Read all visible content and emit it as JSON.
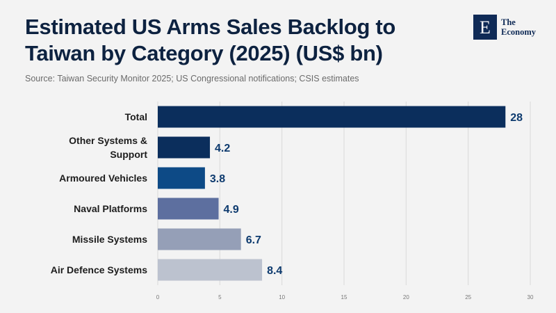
{
  "header": {
    "title": "Estimated US Arms Sales Backlog to Taiwan by Category (2025) (US$ bn)",
    "source": "Source: Taiwan Security Monitor 2025; US Congressional notifications; CSIS estimates"
  },
  "logo": {
    "mark": "E",
    "line1": "The",
    "line2": "Economy"
  },
  "chart_data": {
    "type": "bar",
    "orientation": "horizontal",
    "title": "Estimated US Arms Sales Backlog to Taiwan by Category (2025) (US$ bn)",
    "categories": [
      "Total",
      "Other Systems & Support",
      "Armoured Vehicles",
      "Naval Platforms",
      "Missile Systems",
      "Air Defence Systems"
    ],
    "category_lines": [
      [
        "Total"
      ],
      [
        "Other Systems &",
        "Support"
      ],
      [
        "Armoured Vehicles"
      ],
      [
        "Naval Platforms"
      ],
      [
        "Missile Systems"
      ],
      [
        "Air Defence Systems"
      ]
    ],
    "values": [
      28,
      4.2,
      3.8,
      4.9,
      6.7,
      8.4
    ],
    "value_labels": [
      "28",
      "4.2",
      "3.8",
      "4.9",
      "6.7",
      "8.4"
    ],
    "colors": [
      "#0b2e5c",
      "#0b2e5c",
      "#0d4a86",
      "#5d6f9f",
      "#959fb7",
      "#bcc2cf"
    ],
    "xlim": [
      0,
      30
    ],
    "xticks": [
      0,
      5,
      10,
      15,
      20,
      25,
      30
    ],
    "grid": true,
    "legend": "none"
  }
}
